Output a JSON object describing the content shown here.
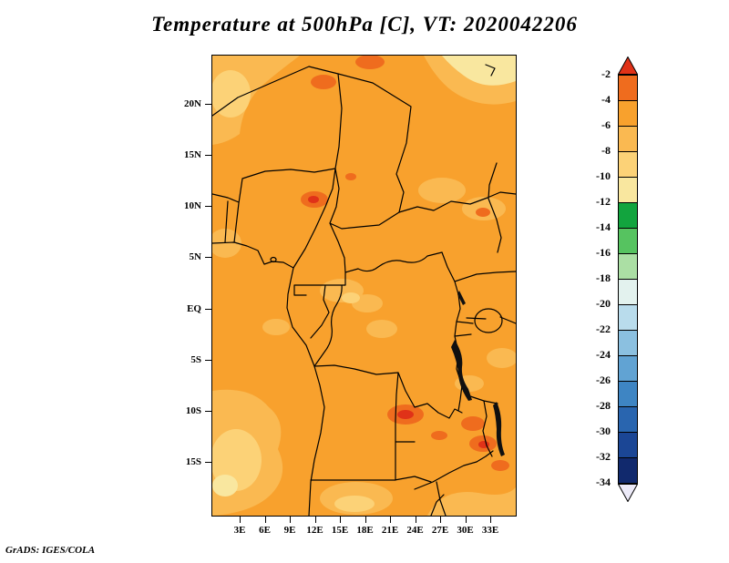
{
  "title": "Temperature at 500hPa [C], VT: 2020042206",
  "credit": "GrADS: IGES/COLA",
  "chart_data": {
    "type": "heatmap",
    "title": "Temperature at 500hPa [C], VT: 2020042206",
    "variable": "Temperature",
    "level": "500hPa",
    "units": "C",
    "valid_time": "2020042206",
    "region": {
      "lon_range_deg_e": [
        0,
        36.4
      ],
      "lat_range_deg": [
        -20.3,
        24.7
      ],
      "area": "Central Africa"
    },
    "lat_ticks": [
      "20N",
      "15N",
      "10N",
      "5N",
      "EQ",
      "5S",
      "10S",
      "15S"
    ],
    "lon_ticks": [
      "3E",
      "6E",
      "9E",
      "12E",
      "15E",
      "18E",
      "21E",
      "24E",
      "27E",
      "30E",
      "33E"
    ],
    "grid": false,
    "colorbar_orientation": "vertical-right",
    "colorbar": {
      "levels": [
        -2,
        -4,
        -6,
        -8,
        -10,
        -12,
        -14,
        -16,
        -18,
        -20,
        -22,
        -24,
        -26,
        -28,
        -30,
        -32,
        -34
      ],
      "segment_colors": [
        "#ef6c1e",
        "#f8a12d",
        "#fab951",
        "#fcd277",
        "#f9e79f",
        "#12a43e",
        "#56c360",
        "#abdfa4",
        "#e3f2ee",
        "#b9dcec",
        "#8bc0e0",
        "#61a3d3",
        "#3e85c3",
        "#2965af",
        "#1b4695",
        "#11296d"
      ],
      "above_color": "#e03218",
      "below_color": "#eceaf8"
    },
    "palette": {
      "map_main": "#f8a12d",
      "map_light1": "#fab951",
      "map_light2": "#fcd277",
      "map_pale": "#f9e79f",
      "map_warm": "#ef6c1e",
      "map_hot": "#e03218",
      "map_lake": "#101010",
      "border": "#000000"
    },
    "field_summary": {
      "dominant_range_c": "-4 to -6",
      "warm_patches_c": "-2 to -4 over central Sahara edge, ~10N near 10-12E, ~33E near 10N, and 10S-14S between 21E and 33E",
      "cool_patches_c": "-6 to -12 in the NW and NE corners, along the equator near 12-20E, and in the SW corner / bottom center"
    }
  }
}
